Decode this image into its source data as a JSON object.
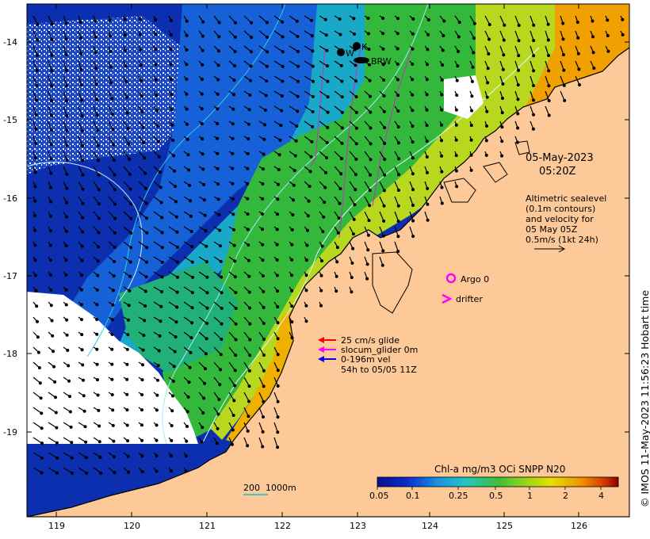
{
  "map": {
    "lat_ticks": [
      "-14",
      "-15",
      "-16",
      "-17",
      "-18",
      "-19"
    ],
    "lon_ticks": [
      "119",
      "120",
      "121",
      "122",
      "123",
      "124",
      "125",
      "126"
    ],
    "sites": [
      "BRW",
      "K",
      "W"
    ]
  },
  "date": {
    "line1": "05-May-2023",
    "line2": "05:20Z"
  },
  "altimetry": {
    "lines": [
      "Altimetric sealevel",
      "(0.1m contours)",
      "and velocity for",
      "05 May 05Z",
      "0.5m/s (1kt 24h)"
    ]
  },
  "argo": {
    "label": "Argo 0",
    "color": "#ff00ff"
  },
  "drifter": {
    "label": "drifter",
    "color": "#ff00ff"
  },
  "glider_legend": {
    "items": [
      {
        "label": "25 cm/s glide",
        "color": "#ff0000"
      },
      {
        "label": "slocum_glider 0m",
        "color": "#ff00ff"
      },
      {
        "label": "0-196m vel",
        "color": "#0000ff"
      },
      {
        "label": "54h to 05/05 11Z",
        "color": ""
      }
    ]
  },
  "scale_bar": {
    "label": "200  1000m",
    "color": "#00c8d8"
  },
  "colorbar": {
    "title": "Chl-a mg/m3 OCi SNPP N20",
    "ticks": [
      "0.05",
      "0.1",
      "0.25",
      "0.5",
      "1",
      "2",
      "4"
    ]
  },
  "stamp": "© IMOS 11-May-2023 11:56:23 Hobart time",
  "colors": {
    "land": "#fdc998",
    "cloud": "#ffffff",
    "deep": "#0a2aa8",
    "mid": "#1f9fd0",
    "green": "#2fbf3a",
    "yellow": "#d8e000",
    "orange": "#f08a00"
  }
}
